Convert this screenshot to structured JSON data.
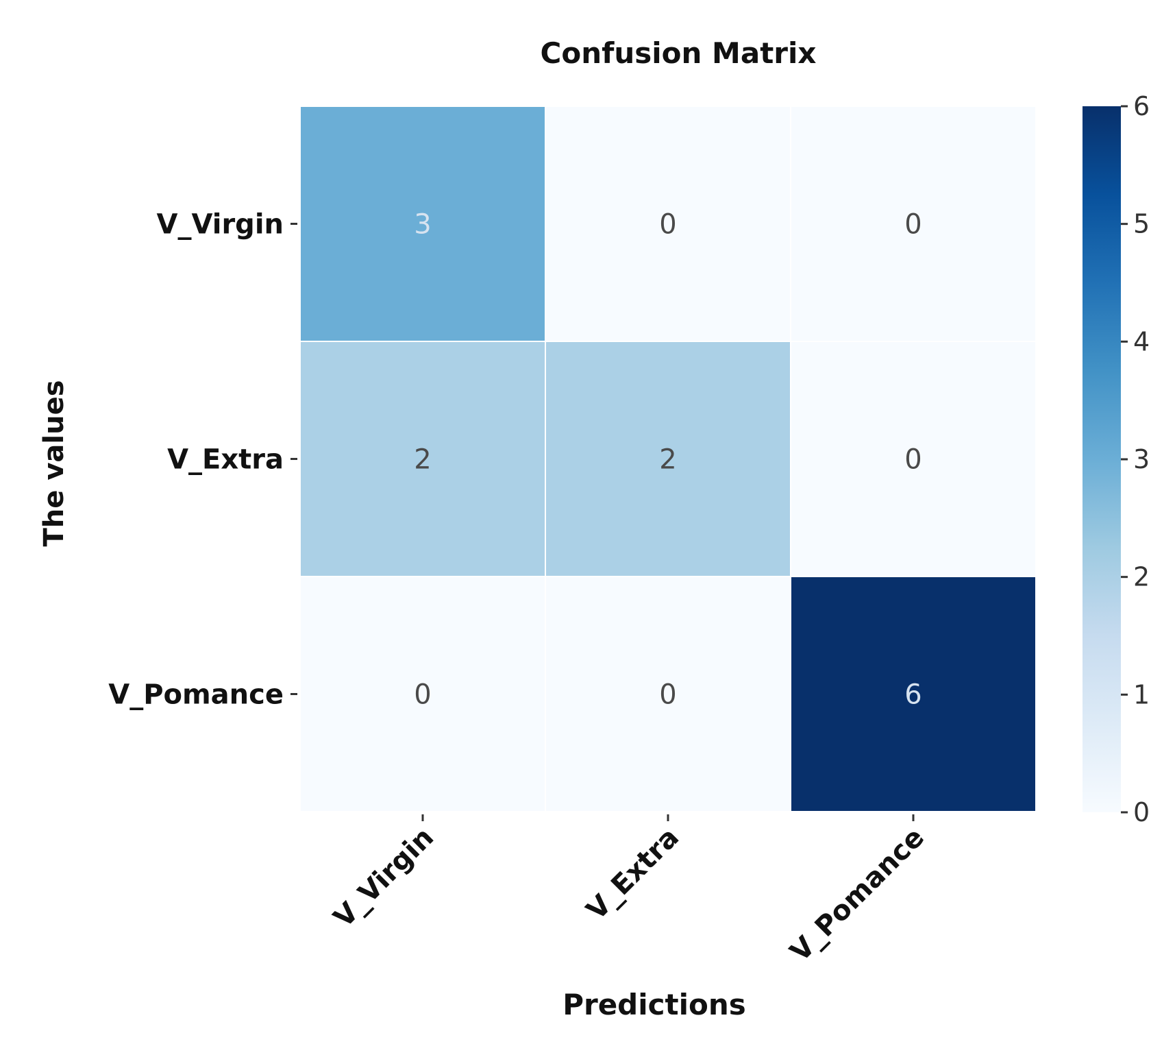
{
  "chart_data": {
    "type": "heatmap",
    "title": "Confusion Matrix",
    "xlabel": "Predictions",
    "ylabel": "The values",
    "x_categories": [
      "V_Virgin",
      "V_Extra",
      "V_Pomance"
    ],
    "y_categories": [
      "V_Virgin",
      "V_Extra",
      "V_Pomance"
    ],
    "values": [
      [
        3,
        0,
        0
      ],
      [
        2,
        2,
        0
      ],
      [
        0,
        0,
        6
      ]
    ],
    "colorbar": {
      "min": 0,
      "max": 6,
      "ticks": [
        "0",
        "1",
        "2",
        "3",
        "4",
        "5",
        "6"
      ],
      "colormap": "Blues"
    },
    "colors": {
      "low": "#f7fbff",
      "high": "#08306b",
      "text_dark": "#4a4a4a",
      "text_light": "#d7e3f0"
    }
  }
}
